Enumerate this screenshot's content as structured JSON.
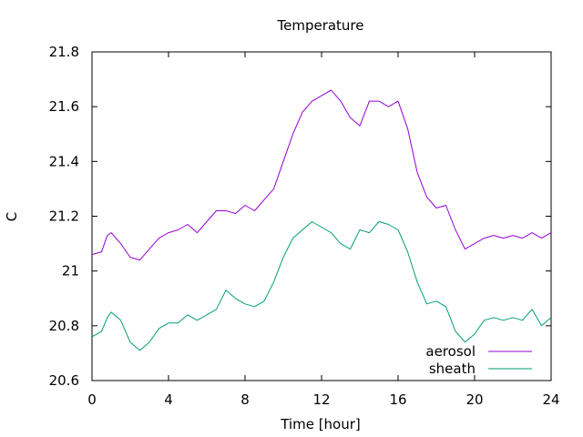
{
  "chart_data": {
    "type": "line",
    "title": "Temperature",
    "xlabel": "Time [hour]",
    "ylabel": "C",
    "xlim": [
      0,
      24
    ],
    "ylim": [
      20.6,
      21.8
    ],
    "xticks": [
      0,
      4,
      8,
      12,
      16,
      20,
      24
    ],
    "xtick_labels": [
      "0",
      "4",
      "8",
      "12",
      "16",
      "20",
      "24"
    ],
    "yticks": [
      20.6,
      20.8,
      21,
      21.2,
      21.4,
      21.6,
      21.8
    ],
    "ytick_labels": [
      "20.6",
      "20.8",
      "21",
      "21.2",
      "21.4",
      "21.6",
      "21.8"
    ],
    "grid": false,
    "legend_position": "bottom-right",
    "series": [
      {
        "name": "aerosol",
        "color": "#9400d3",
        "x": [
          0,
          0.5,
          0.8,
          1.0,
          1.5,
          2.0,
          2.5,
          3.0,
          3.5,
          4.0,
          4.5,
          5.0,
          5.5,
          6.0,
          6.5,
          7.0,
          7.5,
          8.0,
          8.5,
          9.0,
          9.5,
          10.0,
          10.5,
          11.0,
          11.5,
          12.0,
          12.5,
          13.0,
          13.5,
          14.0,
          14.5,
          15.0,
          15.5,
          16.0,
          16.5,
          17.0,
          17.5,
          18.0,
          18.5,
          19.0,
          19.5,
          20.0,
          20.5,
          21.0,
          21.5,
          22.0,
          22.5,
          23.0,
          23.5,
          24.0
        ],
        "values": [
          21.06,
          21.07,
          21.13,
          21.14,
          21.1,
          21.05,
          21.04,
          21.08,
          21.12,
          21.14,
          21.15,
          21.17,
          21.14,
          21.18,
          21.22,
          21.22,
          21.21,
          21.24,
          21.22,
          21.26,
          21.3,
          21.4,
          21.5,
          21.58,
          21.62,
          21.64,
          21.66,
          21.62,
          21.56,
          21.53,
          21.62,
          21.62,
          21.6,
          21.62,
          21.52,
          21.36,
          21.27,
          21.23,
          21.24,
          21.15,
          21.08,
          21.1,
          21.12,
          21.13,
          21.12,
          21.13,
          21.12,
          21.14,
          21.12,
          21.14
        ]
      },
      {
        "name": "sheath",
        "color": "#009e73",
        "x": [
          0,
          0.5,
          0.8,
          1.0,
          1.5,
          2.0,
          2.5,
          3.0,
          3.5,
          4.0,
          4.5,
          5.0,
          5.5,
          6.0,
          6.5,
          7.0,
          7.5,
          8.0,
          8.5,
          9.0,
          9.5,
          10.0,
          10.5,
          11.0,
          11.5,
          12.0,
          12.5,
          13.0,
          13.5,
          14.0,
          14.5,
          15.0,
          15.5,
          16.0,
          16.5,
          17.0,
          17.5,
          18.0,
          18.5,
          19.0,
          19.5,
          20.0,
          20.5,
          21.0,
          21.5,
          22.0,
          22.5,
          23.0,
          23.5,
          24.0
        ],
        "values": [
          20.76,
          20.78,
          20.83,
          20.85,
          20.82,
          20.74,
          20.71,
          20.74,
          20.79,
          20.81,
          20.81,
          20.84,
          20.82,
          20.84,
          20.86,
          20.93,
          20.9,
          20.88,
          20.87,
          20.89,
          20.96,
          21.05,
          21.12,
          21.15,
          21.18,
          21.16,
          21.14,
          21.1,
          21.08,
          21.15,
          21.14,
          21.18,
          21.17,
          21.15,
          21.07,
          20.96,
          20.88,
          20.89,
          20.87,
          20.78,
          20.74,
          20.77,
          20.82,
          20.83,
          20.82,
          20.83,
          20.82,
          20.86,
          20.8,
          20.83
        ]
      }
    ]
  }
}
